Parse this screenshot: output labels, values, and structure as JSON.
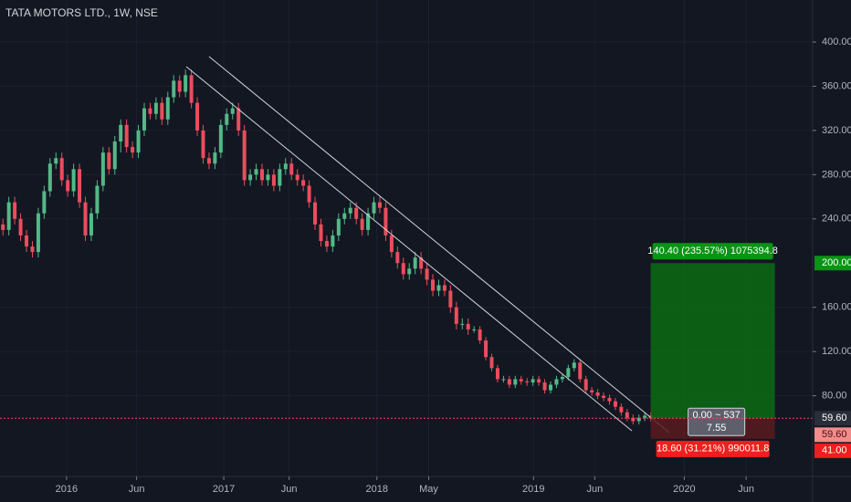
{
  "chart_data": {
    "type": "candlestick",
    "title": "TATA MOTORS LTD., 1W, NSE",
    "up_color": "#53b987",
    "down_color": "#eb4d5c",
    "grid": true,
    "xlim": [
      -0.5,
      137.5
    ],
    "xticks": [
      {
        "value": 10.8,
        "label": "2016"
      },
      {
        "value": 22.7,
        "label": "Jun"
      },
      {
        "value": 37.5,
        "label": "2017"
      },
      {
        "value": 48.6,
        "label": "Jun"
      },
      {
        "value": 63.5,
        "label": "2018"
      },
      {
        "value": 72.3,
        "label": "May"
      },
      {
        "value": 90.1,
        "label": "2019"
      },
      {
        "value": 100.5,
        "label": "Jun"
      },
      {
        "value": 115.7,
        "label": "2020"
      },
      {
        "value": 126.2,
        "label": "Jun"
      }
    ],
    "ylim": [
      7,
      438
    ],
    "yticks": [
      {
        "value": 80,
        "label": "80.00"
      },
      {
        "value": 120,
        "label": "120.00"
      },
      {
        "value": 160,
        "label": "160.00"
      },
      {
        "value": 240,
        "label": "240.00"
      },
      {
        "value": 280,
        "label": "280.00"
      },
      {
        "value": 320,
        "label": "320.00"
      },
      {
        "value": 360,
        "label": "360.00"
      },
      {
        "value": 400,
        "label": "400.00"
      }
    ],
    "open": [
      235,
      230,
      255,
      240,
      225,
      215,
      210,
      245,
      265,
      290,
      295,
      275,
      265,
      285,
      255,
      225,
      245,
      270,
      300,
      285,
      310,
      325,
      305,
      300,
      320,
      340,
      335,
      345,
      330,
      350,
      365,
      355,
      370,
      345,
      320,
      295,
      290,
      300,
      325,
      335,
      340,
      320,
      275,
      280,
      285,
      275,
      280,
      270,
      285,
      290,
      280,
      275,
      270,
      255,
      235,
      220,
      215,
      225,
      240,
      245,
      250,
      240,
      230,
      245,
      255,
      250,
      225,
      210,
      200,
      190,
      195,
      205,
      195,
      185,
      175,
      180,
      175,
      160,
      145,
      145,
      140,
      140,
      130,
      115,
      105,
      95,
      95,
      90,
      95,
      93,
      92,
      95,
      92,
      85,
      90,
      95,
      97,
      105,
      110,
      95,
      85,
      83,
      80,
      78,
      75,
      70,
      65,
      60,
      57,
      60,
      62
    ],
    "high": [
      240,
      260,
      260,
      245,
      230,
      220,
      250,
      270,
      295,
      300,
      300,
      280,
      290,
      290,
      260,
      250,
      275,
      305,
      305,
      315,
      330,
      330,
      310,
      325,
      345,
      345,
      350,
      350,
      355,
      370,
      370,
      375,
      375,
      350,
      325,
      300,
      305,
      330,
      340,
      345,
      345,
      325,
      285,
      290,
      290,
      285,
      285,
      290,
      295,
      295,
      285,
      280,
      275,
      260,
      240,
      225,
      230,
      245,
      250,
      255,
      255,
      245,
      250,
      260,
      260,
      255,
      230,
      215,
      205,
      200,
      210,
      210,
      200,
      190,
      185,
      185,
      180,
      165,
      150,
      150,
      143,
      143,
      133,
      118,
      108,
      98,
      98,
      98,
      98,
      96,
      98,
      98,
      95,
      93,
      98,
      100,
      108,
      113,
      113,
      98,
      88,
      86,
      83,
      81,
      78,
      73,
      68,
      63,
      63,
      65,
      65
    ],
    "low": [
      225,
      225,
      235,
      220,
      210,
      205,
      205,
      240,
      260,
      285,
      270,
      260,
      260,
      250,
      220,
      220,
      240,
      265,
      280,
      280,
      300,
      300,
      295,
      295,
      315,
      330,
      330,
      325,
      325,
      345,
      350,
      350,
      340,
      315,
      290,
      285,
      285,
      295,
      320,
      330,
      315,
      270,
      270,
      275,
      270,
      270,
      265,
      265,
      280,
      275,
      270,
      265,
      250,
      230,
      215,
      210,
      210,
      220,
      235,
      240,
      235,
      225,
      225,
      240,
      245,
      220,
      205,
      195,
      185,
      185,
      190,
      190,
      180,
      170,
      170,
      170,
      155,
      140,
      140,
      135,
      137,
      127,
      112,
      102,
      92,
      92,
      87,
      87,
      90,
      89,
      89,
      89,
      82,
      82,
      87,
      92,
      94,
      102,
      92,
      82,
      80,
      77,
      75,
      72,
      67,
      62,
      57,
      54,
      54,
      57,
      56.6
    ],
    "close": [
      230,
      255,
      240,
      225,
      215,
      210,
      245,
      265,
      290,
      295,
      275,
      265,
      285,
      255,
      225,
      245,
      270,
      300,
      285,
      310,
      325,
      305,
      300,
      320,
      340,
      335,
      345,
      330,
      350,
      365,
      355,
      370,
      345,
      320,
      295,
      290,
      300,
      325,
      335,
      340,
      320,
      275,
      280,
      285,
      275,
      280,
      270,
      285,
      290,
      280,
      275,
      270,
      255,
      235,
      220,
      215,
      225,
      240,
      245,
      250,
      240,
      230,
      245,
      255,
      250,
      225,
      210,
      200,
      190,
      195,
      205,
      195,
      185,
      175,
      180,
      175,
      160,
      145,
      145,
      140,
      140,
      130,
      115,
      105,
      95,
      95,
      90,
      95,
      93,
      92,
      95,
      92,
      85,
      90,
      95,
      97,
      105,
      110,
      95,
      85,
      83,
      80,
      78,
      75,
      70,
      65,
      60,
      57,
      60,
      62,
      59.6
    ],
    "last_price": 59.6,
    "last_price_label": "59.60",
    "position": {
      "entry": 59.6,
      "entry_label": "59.60",
      "target": 200,
      "target_label": "200.00",
      "stop": 41,
      "stop_label": "41.00",
      "target_text": "140.40 (235.57%) 1075394.8",
      "stop_text": "18.60 (31.21%) 990011.8",
      "center_text": [
        "0.00 ~ 537",
        "7.55"
      ]
    }
  }
}
